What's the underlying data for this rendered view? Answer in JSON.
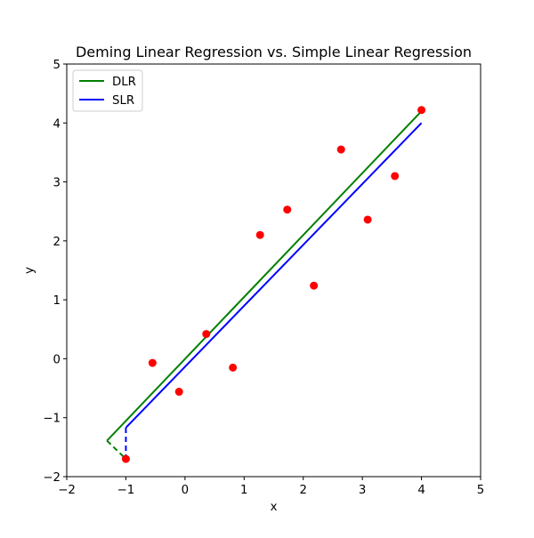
{
  "chart_data": {
    "type": "scatter",
    "title": "Deming Linear Regression vs. Simple Linear Regression",
    "xlabel": "x",
    "ylabel": "y",
    "xlim": [
      -2,
      5
    ],
    "ylim": [
      -2,
      5
    ],
    "xticks": [
      -2,
      -1,
      0,
      1,
      2,
      3,
      4,
      5
    ],
    "yticks": [
      -2,
      -1,
      0,
      1,
      2,
      3,
      4,
      5
    ],
    "xtick_labels": [
      "−2",
      "−1",
      "0",
      "1",
      "2",
      "3",
      "4",
      "5"
    ],
    "ytick_labels": [
      "−2",
      "−1",
      "0",
      "1",
      "2",
      "3",
      "4",
      "5"
    ],
    "grid": false,
    "legend_position": "upper-left",
    "points": {
      "color": "#ff0000",
      "x": [
        -1.0,
        -0.55,
        -0.1,
        0.36,
        0.81,
        1.27,
        1.73,
        2.18,
        2.64,
        3.09,
        3.55,
        4.0
      ],
      "y": [
        -1.7,
        -0.07,
        -0.56,
        0.42,
        -0.15,
        2.1,
        2.53,
        1.24,
        3.55,
        2.36,
        3.1,
        4.22
      ]
    },
    "series": [
      {
        "name": "DLR",
        "color": "#008000",
        "line_x": [
          -1.32,
          4.0
        ],
        "line_y": [
          -1.39,
          4.2
        ],
        "residual_x": [
          -1.32,
          -1.0
        ],
        "residual_y": [
          -1.39,
          -1.7
        ]
      },
      {
        "name": "SLR",
        "color": "#0000ff",
        "line_x": [
          -1.0,
          4.0
        ],
        "line_y": [
          -1.17,
          4.0
        ],
        "residual_x": [
          -1.0,
          -1.0
        ],
        "residual_y": [
          -1.17,
          -1.7
        ]
      }
    ]
  }
}
